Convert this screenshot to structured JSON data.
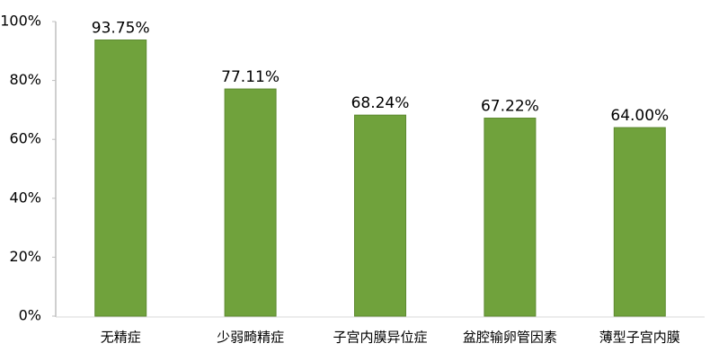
{
  "chart_data": {
    "type": "bar",
    "categories": [
      "无精症",
      "少弱畸精症",
      "子宫内膜异位症",
      "盆腔输卵管因素",
      "薄型子宫内膜"
    ],
    "values": [
      93.75,
      77.11,
      68.24,
      67.22,
      64.0
    ],
    "value_labels": [
      "93.75%",
      "77.11%",
      "68.24%",
      "67.22%",
      "64.00%"
    ],
    "color": "#70a23c",
    "ylim": [
      0,
      100
    ],
    "yticks": [
      {
        "value": 0,
        "label": "0%"
      },
      {
        "value": 20,
        "label": "20%"
      },
      {
        "value": 40,
        "label": "40%"
      },
      {
        "value": 60,
        "label": "60%"
      },
      {
        "value": 80,
        "label": "80%"
      },
      {
        "value": 100,
        "label": "100%"
      }
    ],
    "grid": false
  }
}
